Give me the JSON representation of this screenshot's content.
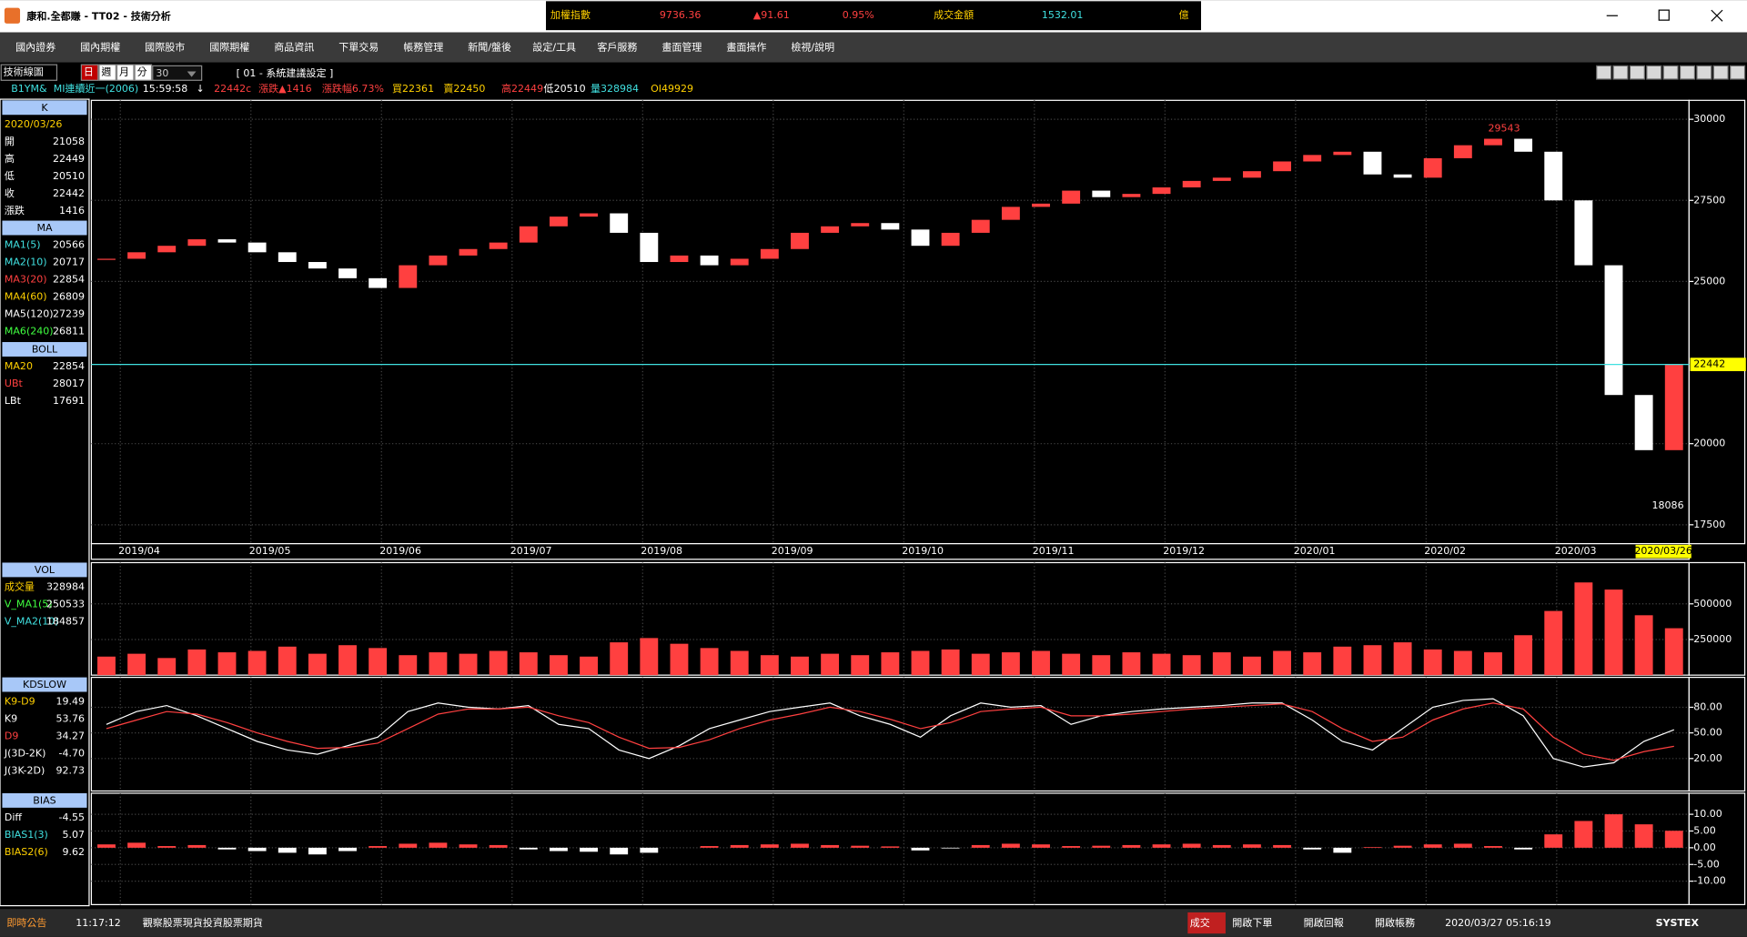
{
  "window": {
    "title": "康和.全都賺 - TT02 - 技術分析"
  },
  "ticker": {
    "name": "加權指數",
    "price": "9736.36",
    "change": "▲91.61",
    "pct": "0.95%",
    "amount_label": "成交金額",
    "amount": "1532.01",
    "unit": "億"
  },
  "menu": [
    "國內證券",
    "國內期權",
    "國際股市",
    "國際期權",
    "商品資訊",
    "下單交易",
    "帳務管理",
    "新聞/盤後",
    "設定/工具",
    "客戶服務",
    "畫面管理",
    "畫面操作",
    "檢視/說明"
  ],
  "toolbar": {
    "title": "技術線圖",
    "periods": [
      "日",
      "週",
      "月",
      "分"
    ],
    "count": "30",
    "template": "[ 01 - 系統建議設定 ]"
  },
  "info": [
    "B1YM&",
    "MI連續近一(2006)",
    "15:59:58",
    "↓",
    "22442c",
    "漲跌▲1416",
    "漲跌幅6.73%",
    "買22361",
    "賣22450",
    "高22449",
    "低20510",
    "量328984",
    "OI49929"
  ],
  "left_panel": [
    {
      "header": "K",
      "date": "2020/03/26",
      "rows": [
        [
          "開",
          "21058"
        ],
        [
          "高",
          "22449"
        ],
        [
          "低",
          "20510"
        ],
        [
          "收",
          "22442"
        ],
        [
          "漲跌",
          "1416"
        ]
      ]
    },
    {
      "header": "MA",
      "rows": [
        [
          "MA1(5)",
          "20566"
        ],
        [
          "MA2(10)",
          "20717"
        ],
        [
          "MA3(20)",
          "22854"
        ],
        [
          "MA4(60)",
          "26809"
        ],
        [
          "MA5(120)",
          "27239"
        ],
        [
          "MA6(240)",
          "26811"
        ]
      ]
    },
    {
      "header": "BOLL",
      "rows": [
        [
          "MA20",
          "22854"
        ],
        [
          "UBt",
          "28017"
        ],
        [
          "LBt",
          "17691"
        ]
      ]
    },
    {
      "header": "VOL",
      "rows": [
        [
          "成交量",
          "328984"
        ],
        [
          "V_MA1(5)",
          "250533"
        ],
        [
          "V_MA2(10)",
          "184857"
        ]
      ]
    },
    {
      "header": "KDSLOW",
      "rows": [
        [
          "K9-D9",
          "19.49"
        ],
        [
          "K9",
          "53.76"
        ],
        [
          "D9",
          "34.27"
        ],
        [
          "J(3D-2K)",
          "-4.70"
        ],
        [
          "J(3K-2D)",
          "92.73"
        ]
      ]
    },
    {
      "header": "BIAS",
      "rows": [
        [
          "Diff",
          "-4.55"
        ],
        [
          "BIAS1(3)",
          "5.07"
        ],
        [
          "BIAS2(6)",
          "9.62"
        ]
      ]
    }
  ],
  "chart_data": [
    {
      "type": "candlestick",
      "values": [
        25700,
        25900,
        26100,
        26300,
        26200,
        25900,
        25600,
        25400,
        25100,
        24800,
        25500,
        25800,
        26000,
        26200,
        26700,
        27000,
        27100,
        26500,
        25600,
        25800,
        25500,
        25700,
        26000,
        26500,
        26700,
        26800,
        26600,
        26100,
        26500,
        26900,
        27300,
        27400,
        27800,
        27600,
        27700,
        27900,
        28100,
        28200,
        28400,
        28700,
        28900,
        29000,
        28300,
        28200,
        28800,
        29200,
        29400,
        29000,
        27500,
        25500,
        21500,
        19800,
        22442
      ],
      "up_color": "#ff4040",
      "down_color": "#ffffff",
      "ylim": [
        16916,
        30584
      ],
      "yticks": [
        17500,
        20000,
        25000,
        27500,
        30000
      ],
      "months": [
        "2019/04",
        "2019/05",
        "2019/06",
        "2019/07",
        "2019/08",
        "2019/09",
        "2019/10",
        "2019/11",
        "2019/12",
        "2020/01",
        "2020/02",
        "2020/03"
      ],
      "last_date": "2020/03/26",
      "high": 29543,
      "low": 18086,
      "last": 22442,
      "grid": true
    },
    {
      "type": "bar",
      "series": [
        {
          "name": "成交量",
          "color": "#ff4040",
          "values": [
            130000,
            150000,
            120000,
            180000,
            160000,
            170000,
            200000,
            150000,
            210000,
            190000,
            140000,
            160000,
            150000,
            170000,
            160000,
            140000,
            130000,
            230000,
            260000,
            220000,
            190000,
            170000,
            140000,
            130000,
            150000,
            140000,
            160000,
            170000,
            180000,
            150000,
            160000,
            170000,
            150000,
            140000,
            160000,
            150000,
            140000,
            160000,
            130000,
            170000,
            160000,
            200000,
            210000,
            230000,
            180000,
            170000,
            160000,
            280000,
            450000,
            650000,
            600000,
            420000,
            328984
          ]
        }
      ],
      "ylim": [
        0,
        789000
      ],
      "yticks": [
        250000,
        500000
      ],
      "grid": true
    },
    {
      "type": "line",
      "series": [
        {
          "name": "K9",
          "color": "#ffffff",
          "values": [
            60,
            75,
            82,
            70,
            55,
            40,
            30,
            25,
            35,
            45,
            75,
            85,
            80,
            78,
            82,
            60,
            55,
            30,
            20,
            35,
            55,
            65,
            75,
            80,
            85,
            70,
            60,
            45,
            70,
            85,
            80,
            82,
            60,
            70,
            75,
            78,
            80,
            82,
            85,
            85,
            65,
            40,
            30,
            55,
            80,
            88,
            90,
            70,
            20,
            10,
            15,
            40,
            53.76
          ]
        },
        {
          "name": "D9",
          "color": "#ff4040",
          "values": [
            55,
            65,
            75,
            72,
            62,
            50,
            40,
            32,
            33,
            38,
            55,
            72,
            78,
            78,
            80,
            70,
            62,
            45,
            32,
            33,
            42,
            55,
            65,
            72,
            80,
            75,
            66,
            55,
            62,
            75,
            78,
            80,
            70,
            70,
            72,
            75,
            78,
            80,
            82,
            84,
            75,
            55,
            40,
            45,
            65,
            78,
            85,
            78,
            45,
            25,
            18,
            28,
            34.27
          ]
        }
      ],
      "ylim": [
        -18,
        115
      ],
      "yticks": [
        {
          "value": 20,
          "label": "20.00"
        },
        {
          "value": 50,
          "label": "50.00"
        },
        {
          "value": 80,
          "label": "80.00"
        }
      ],
      "grid": true
    },
    {
      "type": "bar",
      "series": [
        {
          "name": "BIAS1(3)",
          "color": "#ff4040",
          "values": [
            1,
            1.5,
            0.5,
            0.8,
            -0.5,
            -1,
            -1.5,
            -2,
            -1,
            0.5,
            1.2,
            1.5,
            1,
            0.8,
            -0.5,
            -1,
            -1.2,
            -2,
            -1.5,
            0,
            0.5,
            0.8,
            1,
            1.2,
            0.8,
            0.6,
            0.4,
            -0.8,
            -0.2,
            0.8,
            1.2,
            1,
            0.5,
            0.6,
            0.8,
            1,
            1.2,
            0.8,
            1,
            0.8,
            -0.5,
            -1.5,
            0.2,
            0.6,
            1,
            1.2,
            0.5,
            -0.5,
            4,
            8,
            10,
            7,
            5.07
          ]
        }
      ],
      "down_color": "#ffffff",
      "ylim": [
        -17,
        16.3
      ],
      "yticks": [
        {
          "value": -10,
          "label": "-10.00"
        },
        {
          "value": -5,
          "label": "-5.00"
        },
        {
          "value": 0,
          "label": "0.00"
        },
        {
          "value": 5,
          "label": "5.00"
        },
        {
          "value": 10,
          "label": "10.00"
        }
      ],
      "grid": true
    }
  ],
  "status": {
    "notice": "即時公告",
    "time": "11:17:12",
    "message": "觀察股票現貨投資股票期貨",
    "buttons": [
      "成交",
      "開啟下單",
      "開啟回報",
      "開啟帳務"
    ],
    "datetime": "2020/03/27 05:16:19",
    "brand": "SYSTEX"
  }
}
